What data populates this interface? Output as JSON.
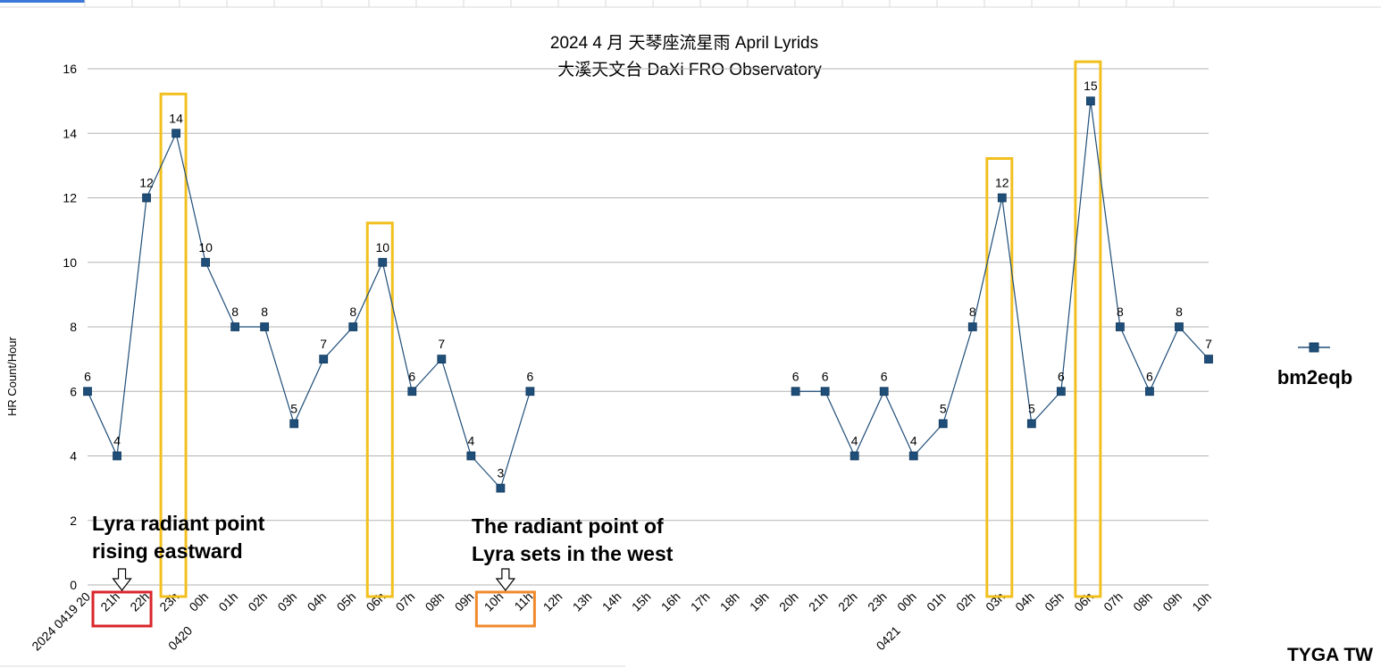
{
  "chart_data": {
    "type": "line",
    "title": "2024   4 月 天琴座流星雨  April  Lyrids",
    "subtitle": "大溪天文台   DaXi FRO Observatory",
    "ylabel": "HR     Count/Hour",
    "ylim": [
      0,
      16
    ],
    "yticks": [
      0,
      2,
      4,
      6,
      8,
      10,
      12,
      14,
      16
    ],
    "grid": true,
    "legend_position": "right",
    "categories": [
      "2024 0419 20",
      "21h",
      "22h",
      "23h",
      "00h",
      "01h",
      "02h",
      "03h",
      "04h",
      "05h",
      "06h",
      "07h",
      "08h",
      "09h",
      "10h",
      "11h",
      "12h",
      "13h",
      "14h",
      "15h",
      "16h",
      "17h",
      "18h",
      "19h",
      "20h",
      "21h",
      "22h",
      "23h",
      "00h",
      "01h",
      "02h",
      "03h",
      "04h",
      "05h",
      "06h",
      "07h",
      "08h",
      "09h",
      "10h"
    ],
    "date_markers": [
      {
        "index": 4,
        "text": "0420"
      },
      {
        "index": 28,
        "text": "0421"
      }
    ],
    "series": [
      {
        "name": "bm2eqb",
        "color": "#1f4e79",
        "values": [
          6,
          4,
          12,
          14,
          10,
          8,
          8,
          5,
          7,
          8,
          10,
          6,
          7,
          4,
          3,
          6,
          null,
          null,
          null,
          null,
          null,
          null,
          null,
          null,
          6,
          6,
          4,
          6,
          4,
          5,
          8,
          12,
          5,
          6,
          15,
          8,
          6,
          8,
          7
        ]
      }
    ],
    "highlights": [
      {
        "index": 3,
        "color": "#f2c01e"
      },
      {
        "index": 10,
        "color": "#f2c01e"
      },
      {
        "index": 31,
        "color": "#f2c01e"
      },
      {
        "index": 34,
        "color": "#f2c01e"
      }
    ],
    "label_boxes": [
      {
        "from": 1,
        "to": 2,
        "color": "#d9262b"
      },
      {
        "from": 14,
        "to": 15,
        "color": "#f08a2c"
      }
    ],
    "annotations": [
      {
        "lines": [
          "Lyra radiant point",
          "rising eastward"
        ],
        "arrow_between": [
          1,
          2
        ]
      },
      {
        "lines": [
          "The radiant point of",
          "Lyra sets in the west"
        ],
        "arrow_between": [
          14,
          15
        ]
      }
    ],
    "credit": "TYGA TW"
  }
}
